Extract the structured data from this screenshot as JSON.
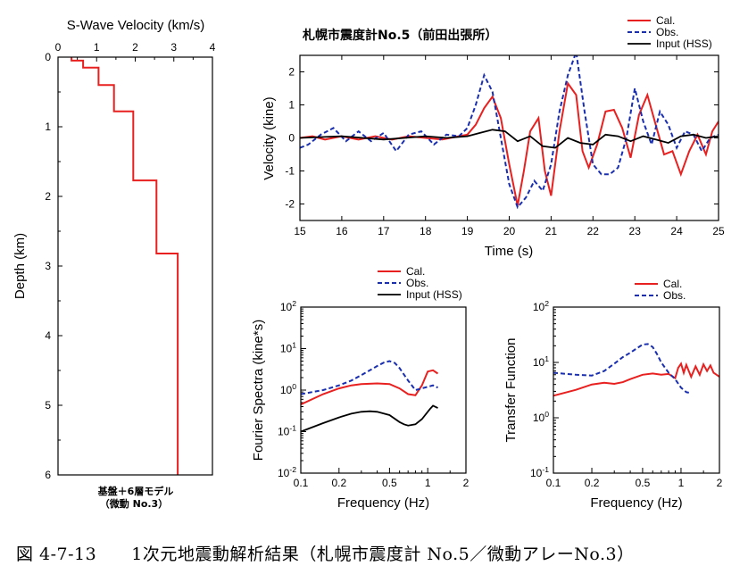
{
  "caption": "図 4-7-13　　1次元地震動解析結果（札幌市震度計 No.5／微動アレーNo.3）",
  "colors": {
    "cal": "#e8201f",
    "obs": "#1a2fb0",
    "input": "#000000",
    "frame": "#000000"
  },
  "chart_data": [
    {
      "type": "line",
      "id": "vs",
      "title": "S-Wave Velocity (km/s)",
      "xlabel": "",
      "ylabel": "Depth (km)",
      "xlim": [
        0,
        4
      ],
      "ylim": [
        6,
        0
      ],
      "xticks": [
        "0",
        "1",
        "2",
        "3",
        "4"
      ],
      "yticks": [
        "0",
        "1",
        "2",
        "3",
        "4",
        "5",
        "6"
      ],
      "note_lines": [
        "基盤＋6層モデル",
        "（微動 No.3）"
      ],
      "series": [
        {
          "key": "cal",
          "x": [
            0.35,
            0.35,
            0.65,
            0.65,
            1.05,
            1.05,
            1.45,
            1.45,
            1.95,
            1.95,
            2.55,
            2.55,
            3.1,
            3.1
          ],
          "y": [
            0,
            0.05,
            0.05,
            0.15,
            0.15,
            0.4,
            0.4,
            0.78,
            0.78,
            1.77,
            1.77,
            2.82,
            2.82,
            6.0
          ]
        }
      ]
    },
    {
      "type": "line",
      "id": "wave",
      "title": "札幌市震度計No.5（前田出張所）",
      "xlabel": "Time (s)",
      "ylabel": "Velocity (kine)",
      "xlim": [
        15,
        25
      ],
      "ylim": [
        -2.5,
        2.5
      ],
      "xticks": [
        "15",
        "16",
        "17",
        "18",
        "19",
        "20",
        "21",
        "22",
        "23",
        "24",
        "25"
      ],
      "yticks": [
        "-2",
        "-1",
        "0",
        "1",
        "2"
      ],
      "legend": [
        "Cal.",
        "Obs.",
        "Input (HSS)"
      ],
      "series": [
        {
          "name": "Cal.",
          "key": "cal",
          "x": [
            15,
            15.3,
            15.6,
            16,
            16.4,
            16.8,
            17.2,
            17.6,
            18,
            18.4,
            18.8,
            19,
            19.2,
            19.4,
            19.6,
            19.8,
            20,
            20.2,
            20.35,
            20.5,
            20.7,
            20.85,
            21,
            21.2,
            21.4,
            21.6,
            21.75,
            21.9,
            22.1,
            22.3,
            22.5,
            22.7,
            22.9,
            23.1,
            23.3,
            23.5,
            23.7,
            23.9,
            24.1,
            24.3,
            24.5,
            24.7,
            24.85,
            25
          ],
          "y": [
            0,
            0.05,
            -0.05,
            0.05,
            -0.05,
            0.05,
            -0.05,
            0.05,
            0,
            -0.05,
            0.05,
            0.1,
            0.4,
            0.9,
            1.25,
            0.6,
            -0.8,
            -2.05,
            -1.0,
            0.2,
            0.6,
            -1.0,
            -1.75,
            0.2,
            1.65,
            1.3,
            -0.4,
            -0.9,
            -0.2,
            0.8,
            0.85,
            0.3,
            -0.6,
            0.7,
            1.3,
            0.4,
            -0.5,
            -0.4,
            -1.1,
            -0.4,
            0.1,
            -0.5,
            0.2,
            0.5
          ]
        },
        {
          "name": "Obs.",
          "key": "obs",
          "x": [
            15,
            15.2,
            15.5,
            15.8,
            16.1,
            16.4,
            16.7,
            17,
            17.3,
            17.6,
            17.9,
            18.2,
            18.5,
            18.8,
            19,
            19.2,
            19.4,
            19.6,
            19.8,
            20,
            20.2,
            20.4,
            20.6,
            20.8,
            21,
            21.2,
            21.4,
            21.6,
            21.8,
            22,
            22.2,
            22.4,
            22.6,
            22.8,
            23,
            23.2,
            23.4,
            23.6,
            23.8,
            24,
            24.2,
            24.4,
            24.6,
            24.8,
            25
          ],
          "y": [
            -0.3,
            -0.2,
            0.1,
            0.3,
            -0.1,
            0.2,
            -0.1,
            0.15,
            -0.4,
            0.1,
            0.2,
            -0.2,
            0.1,
            0.05,
            0.3,
            1.0,
            1.9,
            1.4,
            0,
            -1.4,
            -2.1,
            -1.8,
            -1.3,
            -1.6,
            -0.8,
            0.8,
            1.9,
            2.6,
            0.8,
            -0.8,
            -1.1,
            -1.1,
            -0.9,
            0,
            1.5,
            0.5,
            -0.2,
            0.8,
            0.4,
            -0.3,
            0.2,
            0.1,
            -0.4,
            0,
            0.1
          ]
        },
        {
          "name": "Input (HSS)",
          "key": "input",
          "x": [
            15,
            16,
            17,
            17.5,
            18,
            18.5,
            19,
            19.3,
            19.6,
            19.9,
            20.2,
            20.5,
            20.8,
            21.1,
            21.4,
            21.7,
            22,
            22.3,
            22.6,
            22.9,
            23.2,
            23.5,
            23.8,
            24.1,
            24.4,
            24.7,
            25
          ],
          "y": [
            0,
            0.05,
            -0.05,
            0,
            0.05,
            0,
            0.05,
            0.15,
            0.25,
            0.2,
            -0.1,
            0.05,
            -0.25,
            -0.3,
            0,
            -0.15,
            -0.2,
            0.1,
            0.05,
            -0.1,
            0.05,
            -0.05,
            -0.15,
            0.05,
            0.1,
            0,
            0.05
          ]
        }
      ]
    },
    {
      "type": "line",
      "id": "fourier",
      "title": "",
      "xlabel": "Frequency (Hz)",
      "ylabel": "Fourier Spectra (kine*s)",
      "xscale": "log",
      "yscale": "log",
      "xlim": [
        0.1,
        2
      ],
      "ylim": [
        0.01,
        100
      ],
      "xticks": [
        "0.1",
        "0.2",
        "0.5",
        "1",
        "2"
      ],
      "yticks": [
        "10-2",
        "10-1",
        "100",
        "101",
        "102"
      ],
      "legend": [
        "Cal.",
        "Obs.",
        "Input (HSS)"
      ],
      "series": [
        {
          "name": "Cal.",
          "key": "cal",
          "x": [
            0.1,
            0.15,
            0.2,
            0.25,
            0.3,
            0.4,
            0.5,
            0.6,
            0.7,
            0.8,
            0.9,
            1.0,
            1.1,
            1.2
          ],
          "y": [
            0.45,
            0.8,
            1.1,
            1.3,
            1.4,
            1.45,
            1.4,
            1.1,
            0.8,
            0.75,
            1.3,
            2.8,
            3.0,
            2.5
          ]
        },
        {
          "name": "Obs.",
          "key": "obs",
          "x": [
            0.1,
            0.15,
            0.2,
            0.25,
            0.3,
            0.35,
            0.4,
            0.45,
            0.5,
            0.55,
            0.6,
            0.7,
            0.8,
            0.9,
            1.0,
            1.1,
            1.2
          ],
          "y": [
            0.8,
            1.0,
            1.3,
            1.7,
            2.3,
            3.0,
            3.8,
            4.6,
            5.0,
            4.5,
            3.4,
            1.7,
            1.0,
            1.1,
            1.2,
            1.3,
            1.15
          ]
        },
        {
          "name": "Input (HSS)",
          "key": "input",
          "x": [
            0.1,
            0.15,
            0.2,
            0.25,
            0.3,
            0.35,
            0.4,
            0.5,
            0.6,
            0.65,
            0.7,
            0.8,
            0.9,
            1.0,
            1.05,
            1.1,
            1.2
          ],
          "y": [
            0.1,
            0.16,
            0.22,
            0.27,
            0.3,
            0.31,
            0.3,
            0.25,
            0.17,
            0.15,
            0.14,
            0.15,
            0.2,
            0.3,
            0.36,
            0.42,
            0.37
          ]
        }
      ]
    },
    {
      "type": "line",
      "id": "transfer",
      "title": "",
      "xlabel": "Frequency (Hz)",
      "ylabel": "Transfer Function",
      "xscale": "log",
      "yscale": "log",
      "xlim": [
        0.1,
        2
      ],
      "ylim": [
        0.1,
        100
      ],
      "xticks": [
        "0.1",
        "0.2",
        "0.5",
        "1",
        "2"
      ],
      "yticks": [
        "10-1",
        "100",
        "101",
        "102"
      ],
      "legend": [
        "Cal.",
        "Obs."
      ],
      "series": [
        {
          "name": "Cal.",
          "key": "cal",
          "x": [
            0.1,
            0.15,
            0.2,
            0.25,
            0.3,
            0.35,
            0.4,
            0.5,
            0.6,
            0.7,
            0.8,
            0.9,
            0.95,
            1.0,
            1.05,
            1.1,
            1.2,
            1.3,
            1.4,
            1.5,
            1.6,
            1.7,
            1.8,
            1.9,
            2.0
          ],
          "y": [
            2.5,
            3.2,
            4.0,
            4.3,
            4.1,
            4.4,
            5.0,
            6.0,
            6.3,
            6.0,
            6.2,
            5.2,
            8.0,
            9.5,
            6.5,
            9.0,
            5.5,
            8.5,
            6.0,
            9.2,
            7.0,
            8.8,
            6.5,
            6.0,
            5.5
          ]
        },
        {
          "name": "Obs.",
          "key": "obs",
          "x": [
            0.1,
            0.15,
            0.2,
            0.25,
            0.3,
            0.35,
            0.4,
            0.45,
            0.5,
            0.55,
            0.6,
            0.65,
            0.7,
            0.8,
            0.9,
            1.0,
            1.1,
            1.2
          ],
          "y": [
            6.5,
            6.0,
            5.8,
            7.0,
            9.5,
            12.5,
            15.0,
            18.0,
            21.0,
            21.5,
            19.0,
            14.0,
            10.0,
            6.5,
            5.0,
            3.5,
            2.9,
            2.8
          ]
        }
      ]
    }
  ]
}
